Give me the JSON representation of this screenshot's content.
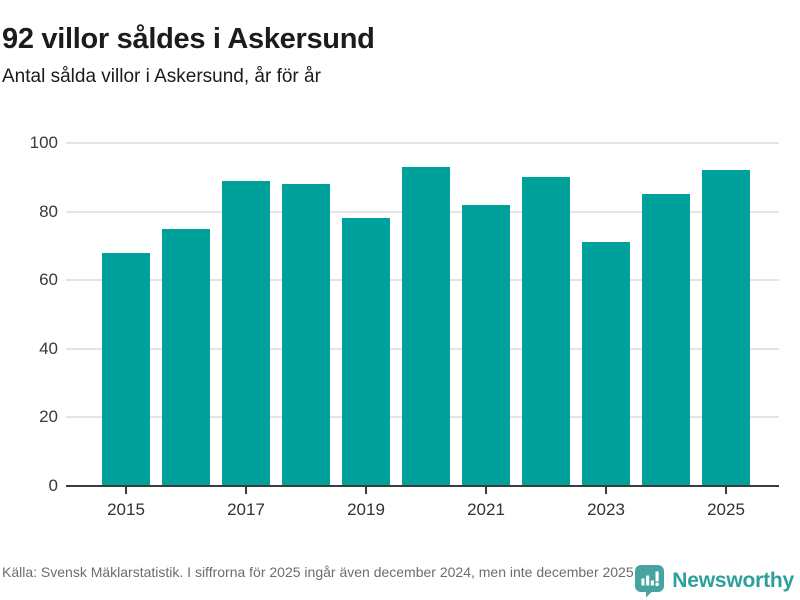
{
  "header": {
    "title": "92 villor såldes i Askersund",
    "subtitle": "Antal sålda villor i Askersund, år för år"
  },
  "chart_data": {
    "type": "bar",
    "categories": [
      2015,
      2016,
      2017,
      2018,
      2019,
      2020,
      2021,
      2022,
      2023,
      2024,
      2025
    ],
    "values": [
      68,
      75,
      89,
      88,
      78,
      93,
      82,
      90,
      71,
      85,
      92
    ],
    "title": "92 villor såldes i Askersund",
    "subtitle": "Antal sålda villor i Askersund, år för år",
    "xlabel": "",
    "ylabel": "",
    "ylim": [
      0,
      100
    ],
    "yticks": [
      0,
      20,
      40,
      60,
      80,
      100
    ],
    "xtick_labels": [
      "2015",
      "2017",
      "2019",
      "2021",
      "2023",
      "2025"
    ],
    "grid": "horizontal",
    "legend": "none",
    "bar_color": "#00a19a"
  },
  "footer": {
    "source": "Källa: Svensk Mäklarstatistik. I siffrorna för 2025 ingår även december 2024, men inte december 2025.",
    "brand": "Newsworthy"
  },
  "colors": {
    "bar": "#00a19a",
    "axis": "#3b3b3b",
    "gridline": "#e4e4e4",
    "title_text": "#1c1c1a",
    "source_text": "#6d6d71",
    "brand_teal": "#2ba09c",
    "logo_bubble": "#46a3a0"
  }
}
